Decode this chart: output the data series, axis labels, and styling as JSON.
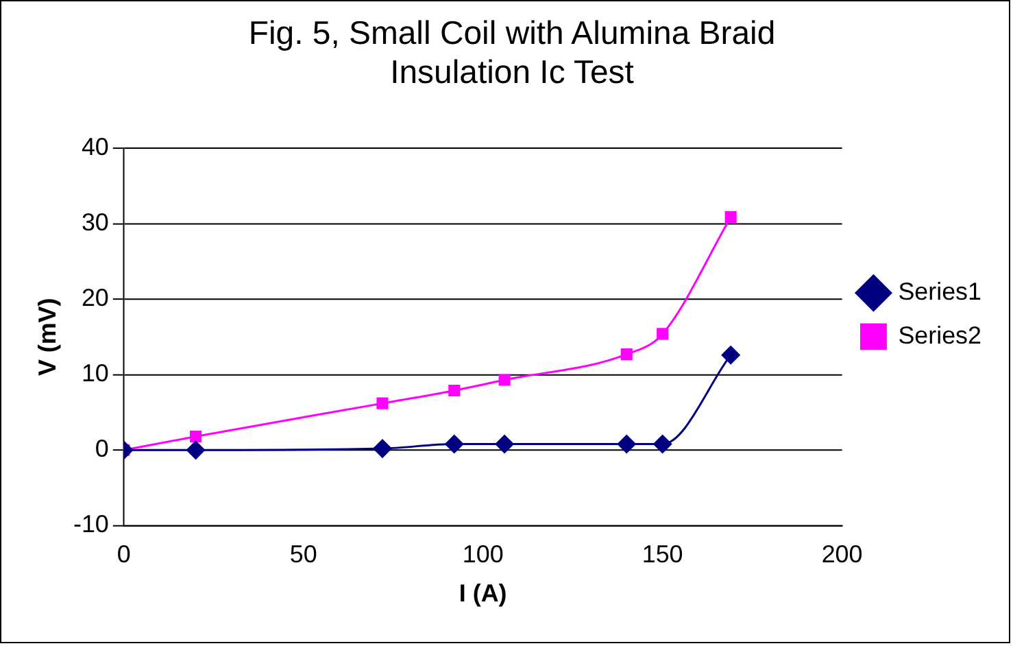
{
  "chart_data": {
    "type": "line",
    "title": [
      "Fig. 5, Small Coil with Alumina Braid",
      "Insulation Ic Test"
    ],
    "xlabel": "I (A)",
    "ylabel": "V (mV)",
    "xlim": [
      0,
      200
    ],
    "xticks": [
      0,
      50,
      100,
      150,
      200
    ],
    "ylim": [
      -10,
      40
    ],
    "yticks": [
      -10,
      0,
      10,
      20,
      30,
      40
    ],
    "grid": "y",
    "legend": "right",
    "series": [
      {
        "name": "Series1",
        "color": "#000080",
        "marker": "diamond",
        "x": [
          0,
          20,
          72,
          92,
          106,
          140,
          150,
          169
        ],
        "values": [
          0,
          0,
          0.2,
          0.8,
          0.8,
          0.8,
          0.8,
          12.6
        ]
      },
      {
        "name": "Series2",
        "color": "#ff00ff",
        "marker": "square",
        "x": [
          0,
          20,
          72,
          92,
          106,
          140,
          150,
          169
        ],
        "values": [
          0,
          1.8,
          6.2,
          7.9,
          9.3,
          12.7,
          15.4,
          30.9
        ]
      }
    ]
  }
}
